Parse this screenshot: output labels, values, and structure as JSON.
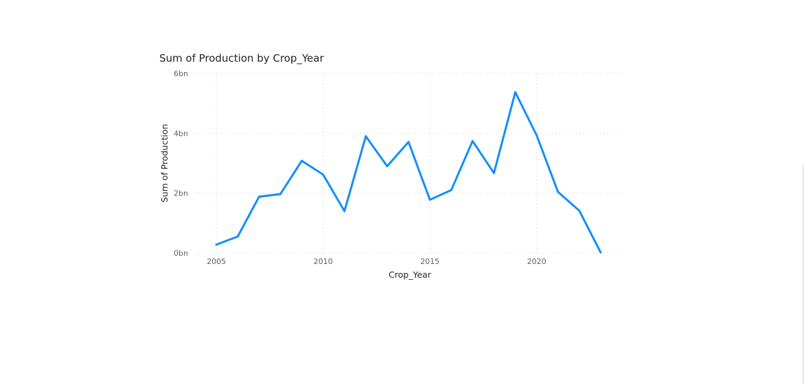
{
  "chart_data": {
    "type": "line",
    "title": "Sum of Production by Crop_Year",
    "xlabel": "Crop_Year",
    "ylabel": "Sum of Production",
    "x": [
      2005,
      2006,
      2007,
      2008,
      2009,
      2010,
      2011,
      2012,
      2013,
      2014,
      2015,
      2016,
      2017,
      2018,
      2019,
      2020,
      2021,
      2022,
      2023
    ],
    "series": [
      {
        "values": [
          0.28,
          0.55,
          1.88,
          1.97,
          3.08,
          2.62,
          1.4,
          3.9,
          2.9,
          3.71,
          1.78,
          2.1,
          3.74,
          2.67,
          5.37,
          3.93,
          2.04,
          1.41,
          0.02
        ],
        "unit": "bn",
        "color": "#118DFF"
      }
    ],
    "xlim": [
      2004,
      2024
    ],
    "ylim": [
      0,
      6
    ],
    "x_ticks": [
      "2005",
      "2010",
      "2015",
      "2020"
    ],
    "y_ticks": [
      "0bn",
      "2bn",
      "4bn",
      "6bn"
    ],
    "x_tick_values": [
      2005,
      2010,
      2015,
      2020
    ],
    "y_tick_values": [
      0,
      2,
      4,
      6
    ],
    "grid": true,
    "grid_style": "dotted",
    "legend": "none"
  }
}
